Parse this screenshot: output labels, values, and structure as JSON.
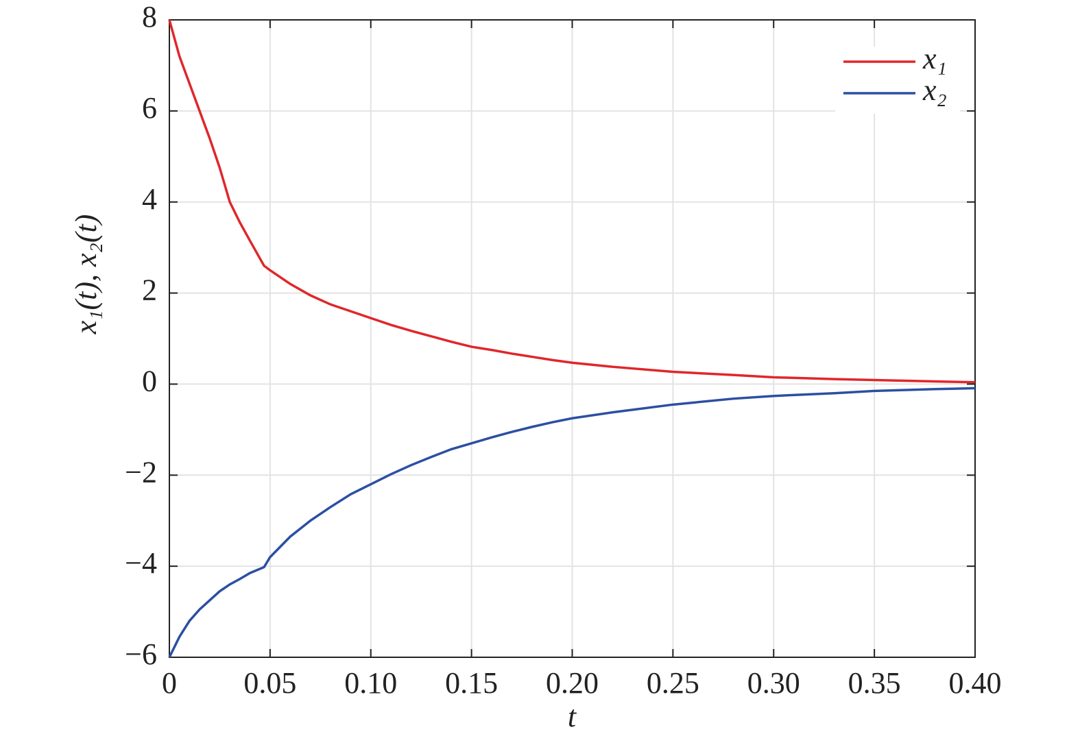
{
  "chart_data": {
    "type": "line",
    "xlabel": "t",
    "ylabel": "x₁(t), x₂(t)",
    "x": [
      0,
      0.005,
      0.01,
      0.015,
      0.02,
      0.025,
      0.03,
      0.035,
      0.04,
      0.047,
      0.05,
      0.06,
      0.07,
      0.08,
      0.09,
      0.1,
      0.11,
      0.12,
      0.13,
      0.14,
      0.15,
      0.16,
      0.17,
      0.18,
      0.19,
      0.2,
      0.22,
      0.25,
      0.28,
      0.3,
      0.33,
      0.35,
      0.38,
      0.4
    ],
    "series": [
      {
        "name": "x₁",
        "color": "#e0262b",
        "values": [
          8,
          7.2,
          6.6,
          6.0,
          5.4,
          4.75,
          4.0,
          3.55,
          3.15,
          2.6,
          2.5,
          2.2,
          1.95,
          1.75,
          1.6,
          1.45,
          1.3,
          1.17,
          1.05,
          0.93,
          0.82,
          0.75,
          0.67,
          0.6,
          0.53,
          0.47,
          0.38,
          0.27,
          0.2,
          0.15,
          0.11,
          0.09,
          0.06,
          0.04
        ]
      },
      {
        "name": "x₂",
        "color": "#2b4fa2",
        "values": [
          -6,
          -5.55,
          -5.2,
          -4.95,
          -4.75,
          -4.55,
          -4.4,
          -4.28,
          -4.15,
          -4.02,
          -3.8,
          -3.35,
          -3.0,
          -2.7,
          -2.42,
          -2.2,
          -1.98,
          -1.78,
          -1.6,
          -1.43,
          -1.3,
          -1.17,
          -1.05,
          -0.94,
          -0.84,
          -0.75,
          -0.62,
          -0.45,
          -0.32,
          -0.26,
          -0.2,
          -0.15,
          -0.11,
          -0.09
        ]
      }
    ],
    "xlim": [
      0,
      0.4
    ],
    "ylim": [
      -6,
      8
    ],
    "xticks": [
      0,
      0.05,
      {
        "value": 0.1,
        "label": "0.10"
      },
      0.15,
      {
        "value": 0.2,
        "label": "0.20"
      },
      0.25,
      {
        "value": 0.3,
        "label": "0.30"
      },
      0.35,
      {
        "value": 0.4,
        "label": "0.40"
      }
    ],
    "yticks": [
      {
        "value": -6,
        "label": "−6"
      },
      {
        "value": -4,
        "label": "−4"
      },
      {
        "value": -2,
        "label": "−2"
      },
      0,
      2,
      4,
      6,
      8
    ],
    "grid": true,
    "legend": "upper right"
  }
}
